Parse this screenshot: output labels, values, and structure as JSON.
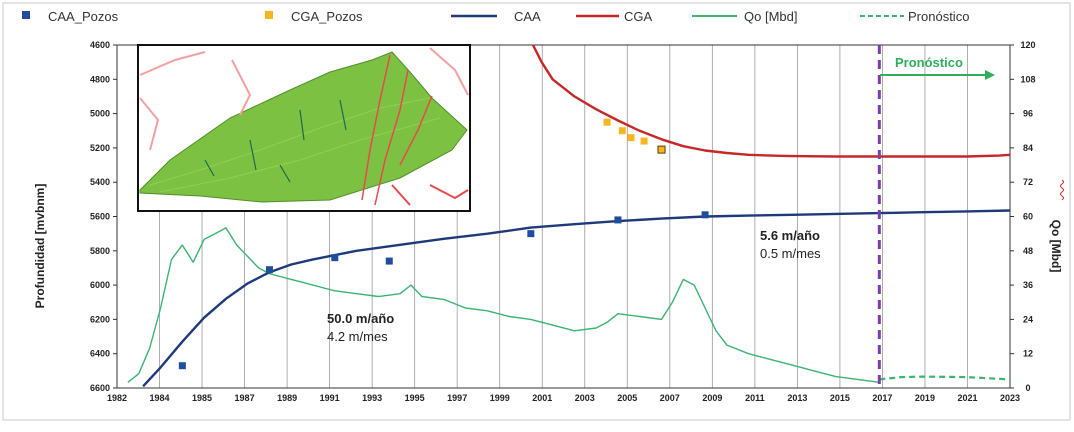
{
  "chart_data": {
    "type": "line",
    "x_axis": {
      "tick_labels": [
        "1982",
        "1984",
        "1985",
        "1987",
        "1989",
        "1991",
        "1993",
        "1995",
        "1997",
        "1999",
        "2001",
        "2003",
        "2005",
        "2007",
        "2009",
        "2011",
        "2013",
        "2015",
        "2017",
        "2019",
        "2021",
        "2023"
      ],
      "range": [
        1982,
        2023
      ]
    },
    "y_left": {
      "title": "Profundidad [mvbnm]",
      "range": [
        4600,
        6600
      ],
      "inverted": true,
      "ticks": [
        4600,
        4800,
        5000,
        5200,
        5400,
        5600,
        5800,
        6000,
        6200,
        6400,
        6600
      ]
    },
    "y_right": {
      "title": "Qo [Mbd]",
      "range": [
        0,
        120
      ],
      "ticks": [
        0,
        12,
        24,
        36,
        48,
        60,
        72,
        84,
        96,
        108,
        120
      ]
    },
    "grid": "vertical",
    "legend": {
      "position": "top",
      "entries": [
        {
          "label": "CAA_Pozos",
          "color": "#1f4e9e",
          "kind": "square"
        },
        {
          "label": "CGA_Pozos",
          "color": "#f5b622",
          "kind": "square"
        },
        {
          "label": "CAA",
          "color": "#1e3a7a",
          "kind": "line"
        },
        {
          "label": "CGA",
          "color": "#c62828",
          "kind": "line"
        },
        {
          "label": "Qo [Mbd]",
          "color": "#3cb371",
          "kind": "line"
        },
        {
          "label": "Pronóstico",
          "color": "#3cb371",
          "kind": "dashed"
        }
      ]
    },
    "series": [
      {
        "name": "CAA",
        "axis": "left",
        "color": "#1e3a7a",
        "x": [
          1983.2,
          1984,
          1985,
          1986,
          1987,
          1988,
          1989,
          1990,
          1991,
          1993,
          1995,
          1997,
          1999,
          2001,
          2003,
          2005,
          2007,
          2009,
          2011,
          2013,
          2015,
          2017,
          2019,
          2021,
          2023
        ],
        "y": [
          6590,
          6480,
          6330,
          6190,
          6080,
          5990,
          5925,
          5880,
          5850,
          5800,
          5765,
          5730,
          5700,
          5665,
          5645,
          5627,
          5612,
          5600,
          5595,
          5590,
          5585,
          5580,
          5575,
          5570,
          5565
        ]
      },
      {
        "name": "CGA",
        "axis": "left",
        "color": "#c62828",
        "x": [
          2001.1,
          2001.5,
          2002,
          2003,
          2004,
          2005,
          2006,
          2007,
          2008,
          2009,
          2010,
          2011,
          2012,
          2013,
          2015,
          2017,
          2019,
          2021,
          2022.5,
          2023
        ],
        "y": [
          4600,
          4700,
          4800,
          4900,
          4975,
          5040,
          5100,
          5150,
          5190,
          5215,
          5230,
          5240,
          5245,
          5248,
          5250,
          5250,
          5250,
          5250,
          5245,
          5240
        ]
      },
      {
        "name": "CAA_Pozos",
        "axis": "left",
        "color": "#1f4e9e",
        "x": [
          1985,
          1989,
          1992,
          1994.5,
          2001,
          2005,
          2009
        ],
        "y": [
          6470,
          5910,
          5840,
          5860,
          5700,
          5620,
          5590
        ]
      },
      {
        "name": "CGA_Pozos",
        "axis": "left",
        "color": "#f5b622",
        "x": [
          2004.5,
          2005.2,
          2005.6,
          2006.2,
          2007
        ],
        "y": [
          5050,
          5100,
          5140,
          5160,
          5210
        ]
      },
      {
        "name": "Qo [Mbd]",
        "axis": "right",
        "color": "#3cb371",
        "x": [
          1982.5,
          1983,
          1983.5,
          1984,
          1984.5,
          1985,
          1985.5,
          1986,
          1986.5,
          1987,
          1987.5,
          1988,
          1988.5,
          1989,
          1989.5,
          1990,
          1990.5,
          1991,
          1991.5,
          1992,
          1993,
          1994,
          1995,
          1995.5,
          1996,
          1997,
          1998,
          1999,
          2000,
          2001,
          2002,
          2003,
          2004,
          2004.5,
          2005,
          2006,
          2007,
          2007.5,
          2008,
          2008.5,
          2009,
          2009.5,
          2010,
          2011,
          2012,
          2013,
          2014,
          2015,
          2016,
          2017
        ],
        "y": [
          2,
          5,
          14,
          28,
          45,
          50,
          44,
          52,
          54,
          56,
          50,
          46,
          42,
          40,
          39,
          38,
          37,
          36,
          35,
          34,
          33,
          32,
          33,
          36,
          32,
          31,
          28,
          27,
          25,
          24,
          22,
          20,
          21,
          23,
          26,
          25,
          24,
          30,
          38,
          36,
          28,
          20,
          15,
          12,
          10,
          8,
          6,
          4,
          3,
          2
        ]
      },
      {
        "name": "Pronóstico",
        "axis": "right",
        "color": "#3cb371",
        "dashed": true,
        "x": [
          2017,
          2018,
          2019,
          2021,
          2023
        ],
        "y": [
          3,
          3.8,
          4,
          3.8,
          3
        ]
      }
    ],
    "annotations": [
      {
        "text": "50.0 m/año",
        "bold": true
      },
      {
        "text": "4.2 m/mes",
        "bold": false
      },
      {
        "text": "5.6 m/año",
        "bold": true
      },
      {
        "text": "0.5 m/mes",
        "bold": false
      },
      {
        "text": "Pronóstico",
        "bold": true,
        "color": "#2eae5a"
      }
    ],
    "forecast_start_x": 2017,
    "colors": {
      "forecast_line": "#7b3fa6",
      "inset_fill": "#7cc142",
      "inset_fault": "#e84a4a"
    }
  }
}
